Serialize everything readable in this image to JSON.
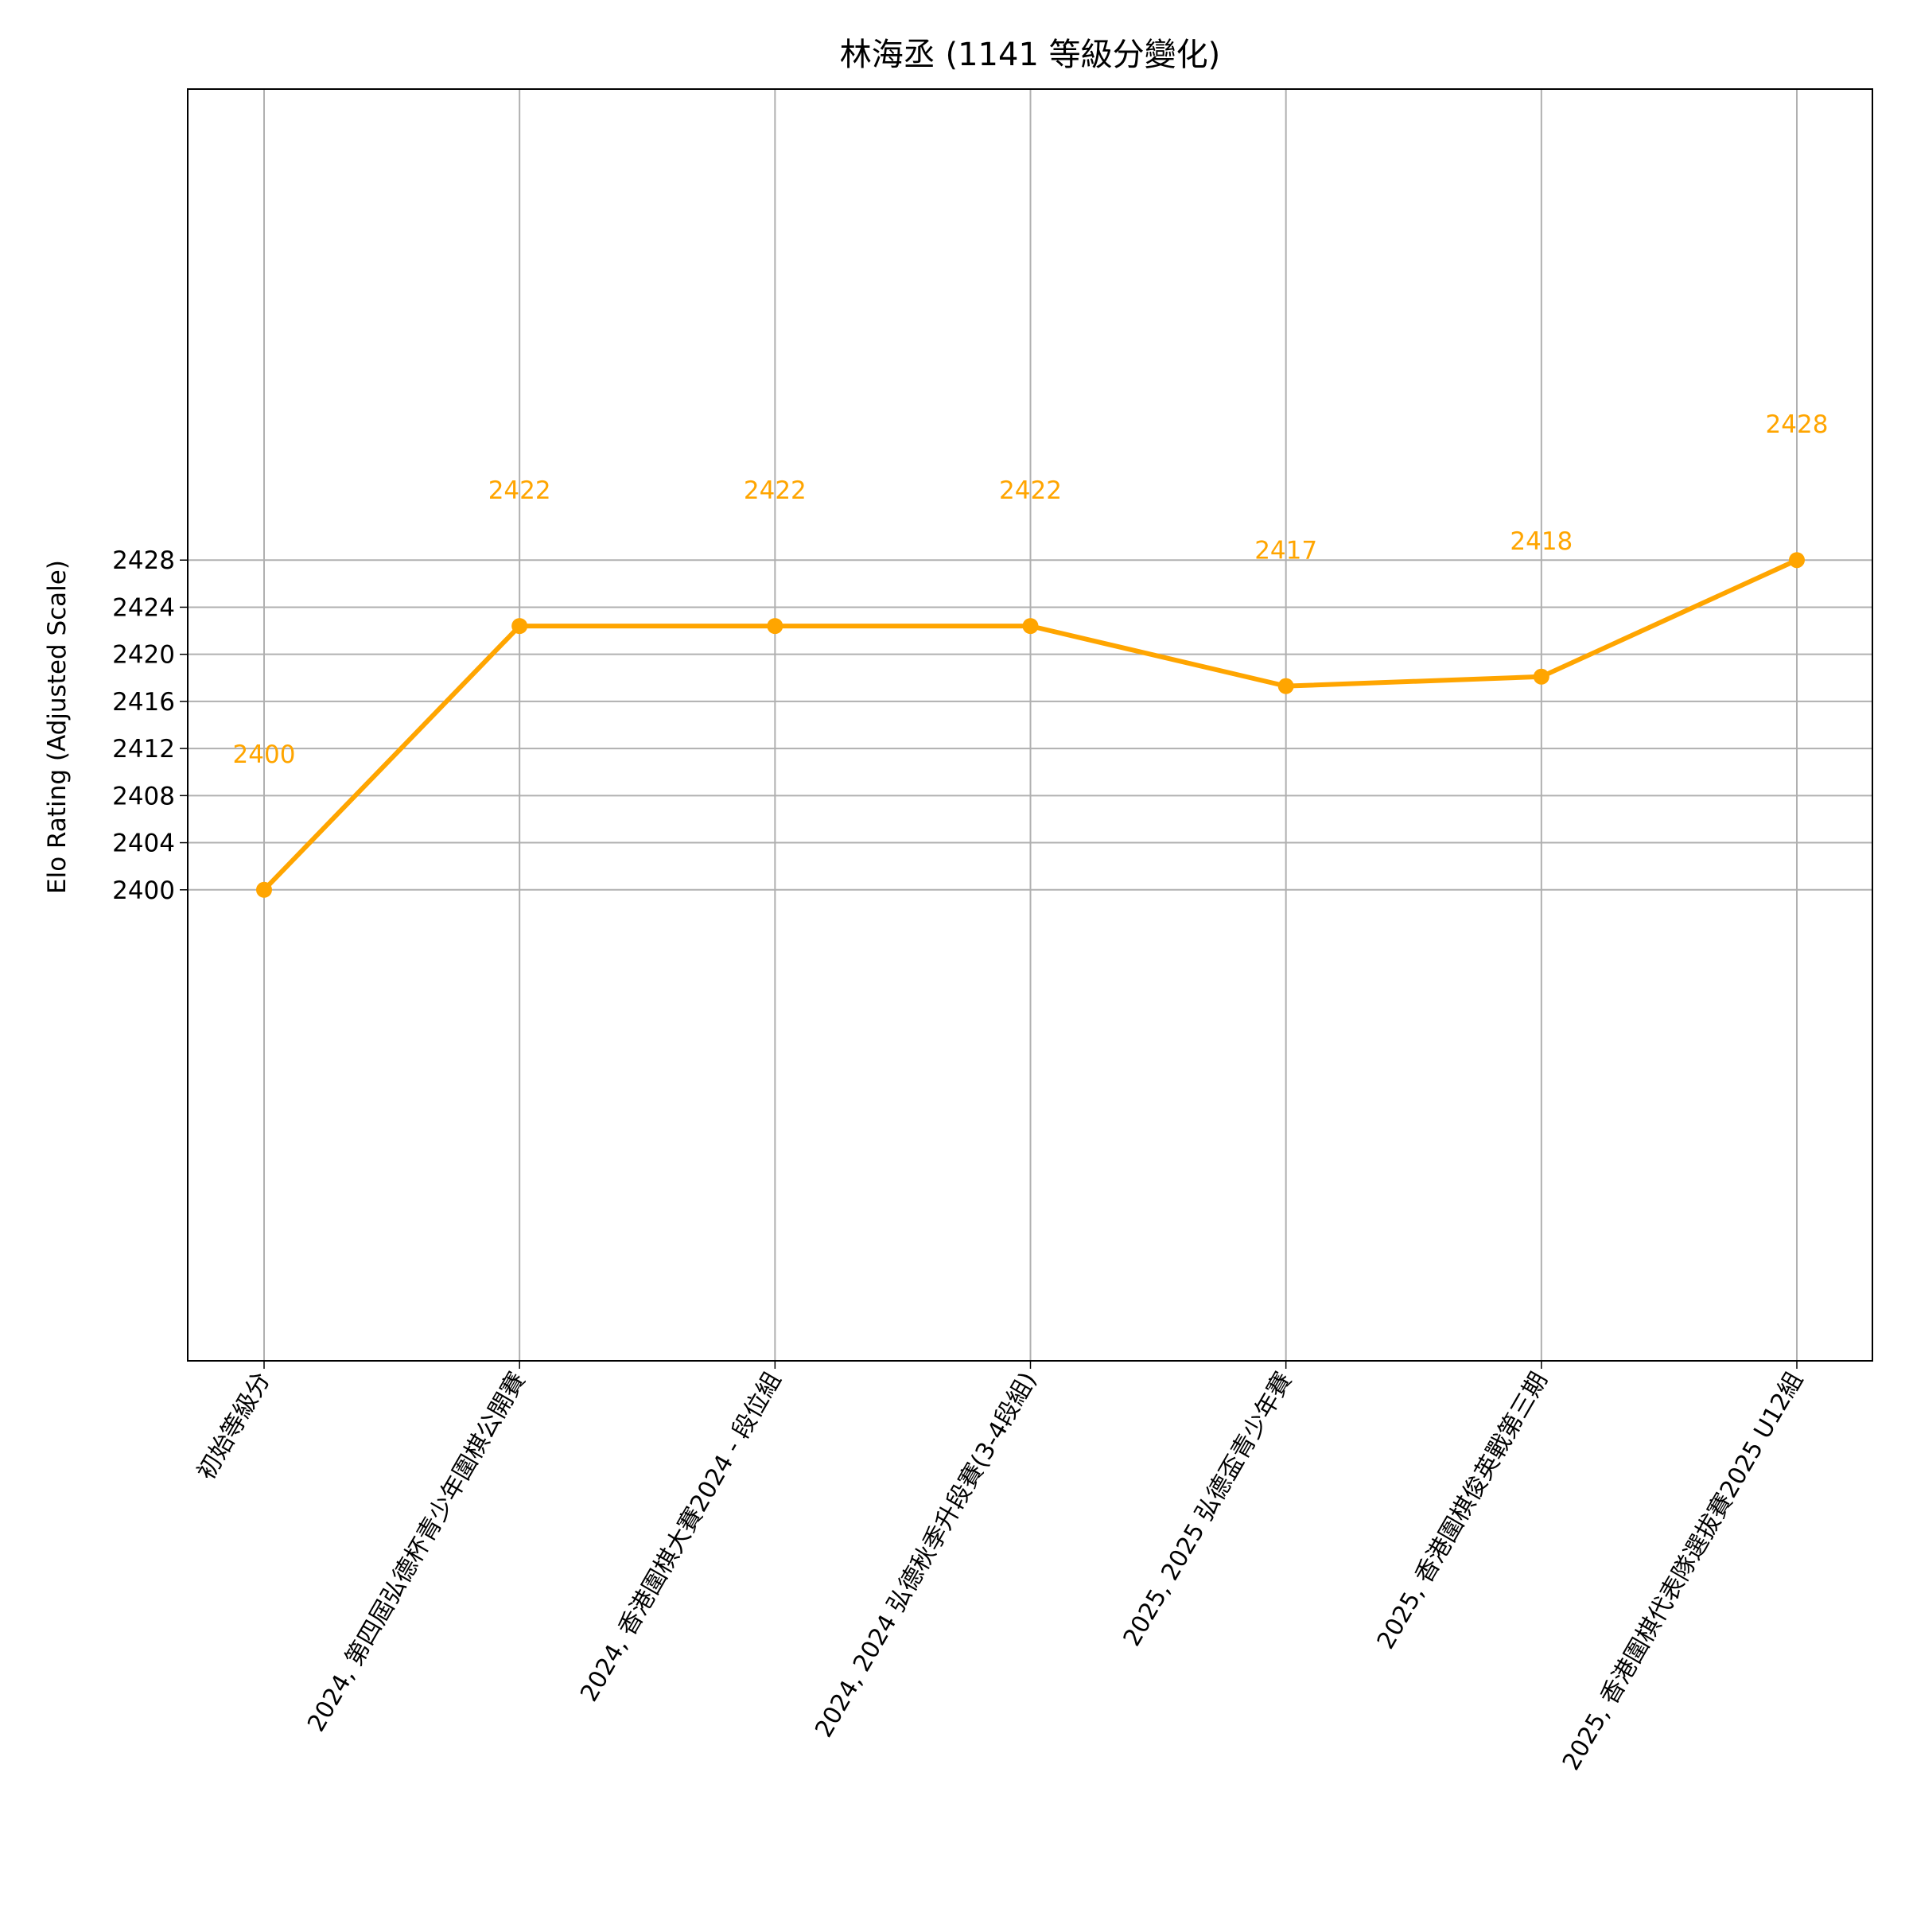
{
  "chart_data": {
    "type": "line",
    "title": "林海丞 (1141 等級分變化)",
    "y_label": "Elo Rating (Adjusted Scale)",
    "categories": [
      "初始等級分",
      "2024, 第四屆弘德杯青少年圍棋公開賽",
      "2024, 香港圍棋大賽2024 - 段位組",
      "2024, 2024 弘德秋季升段賽(3-4段組)",
      "2025, 2025 弘德盃青少年賽",
      "2025, 香港圍棋俊英戰第三期",
      "2025, 香港圍棋代表隊選拔賽2025 U12組"
    ],
    "values": [
      2400,
      2422.4,
      2422.4,
      2422.4,
      2417.3,
      2418.1,
      2428
    ],
    "value_labels": [
      "2400",
      "2422",
      "2422",
      "2422",
      "2417",
      "2418",
      "2428"
    ],
    "color": "#ffa500",
    "ylim": [
      2360,
      2468
    ],
    "yticks": [
      2400,
      2404,
      2408,
      2412,
      2416,
      2420,
      2424,
      2428
    ],
    "grid": true
  }
}
